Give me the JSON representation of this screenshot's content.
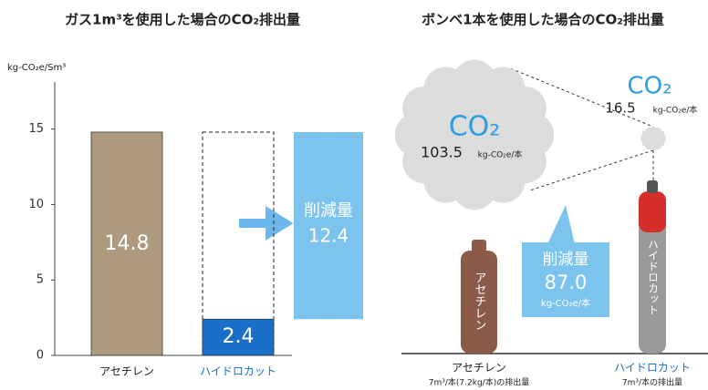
{
  "chart_data": [
    {
      "type": "bar",
      "title": "ガス1m³を使用した場合のCO₂排出量",
      "y_label": "kg-CO₂e/Sm³",
      "categories": [
        "アセチレン",
        "ハイドロカット"
      ],
      "values": [
        14.8,
        2.4
      ],
      "colors": [
        "#ad9a7f",
        "#1a6fc9"
      ],
      "label_colors": [
        "#222222",
        "#1a6fc9"
      ],
      "ylim": [
        0,
        18
      ],
      "yticks": [
        0,
        5,
        10,
        15
      ],
      "reduction": {
        "label": "削減量",
        "value": 12.4,
        "color": "#7cc4ee"
      }
    },
    {
      "type": "pictorial",
      "title": "ボンベ1本を使用した場合のCO₂排出量",
      "gas_label": "CO₂",
      "unit": "kg-CO₂e/本",
      "categories": [
        "アセチレン",
        "ハイドロカット"
      ],
      "values": [
        103.5,
        16.5
      ],
      "notes": [
        "7m³/本(7.2kg/本)の排出量",
        "7m³/本の排出量"
      ],
      "label_colors": [
        "#222222",
        "#1a6fc9"
      ],
      "reduction": {
        "label": "削減量",
        "value": 87,
        "value_label": "87.0",
        "color": "#7cc4ee"
      }
    }
  ]
}
